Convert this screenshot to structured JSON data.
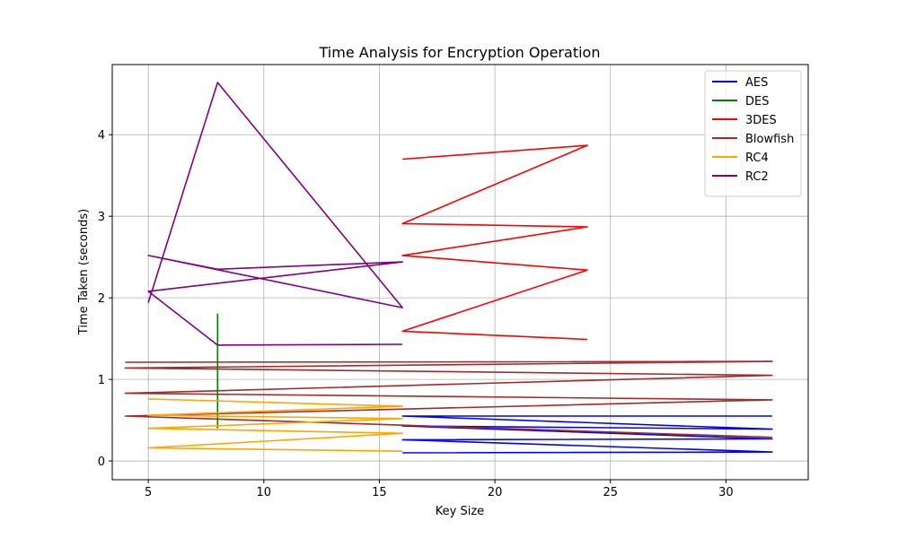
{
  "chart_data": {
    "type": "line",
    "title": "Time Analysis for Encryption Operation",
    "xlabel": "Key Size",
    "ylabel": "Time Taken (seconds)",
    "xlim": [
      3.44,
      33.56
    ],
    "ylim": [
      -0.23,
      4.86
    ],
    "xticks": [
      5,
      10,
      15,
      20,
      25,
      30
    ],
    "yticks": [
      0,
      1,
      2,
      3,
      4
    ],
    "grid": true,
    "legend_position": "top-right",
    "series": [
      {
        "name": "AES",
        "color": "#0000ff",
        "x": [
          16,
          32,
          16,
          32,
          16,
          32,
          16,
          32
        ],
        "y": [
          0.1,
          0.11,
          0.26,
          0.27,
          0.43,
          0.39,
          0.55,
          0.55
        ]
      },
      {
        "name": "DES",
        "color": "#008000",
        "x": [
          8,
          8,
          8,
          8
        ],
        "y": [
          0.4,
          1.42,
          1.8,
          0.55
        ]
      },
      {
        "name": "3DES",
        "color": "#ff0000",
        "x": [
          16,
          24,
          16,
          24,
          16,
          24,
          16,
          24
        ],
        "y": [
          3.7,
          3.87,
          2.91,
          2.87,
          2.52,
          2.34,
          1.59,
          1.49
        ]
      },
      {
        "name": "Blowfish",
        "color": "#a52a2a",
        "x": [
          4,
          32,
          4,
          32,
          4,
          32,
          4,
          32
        ],
        "y": [
          1.21,
          1.22,
          1.14,
          1.05,
          0.83,
          0.75,
          0.55,
          0.29
        ]
      },
      {
        "name": "RC4",
        "color": "#ffa500",
        "x": [
          5,
          16,
          5,
          16,
          5,
          16,
          5,
          16
        ],
        "y": [
          0.76,
          0.67,
          0.56,
          0.52,
          0.4,
          0.34,
          0.16,
          0.12
        ]
      },
      {
        "name": "RC2",
        "color": "#800080",
        "x": [
          5,
          8,
          16,
          5,
          8,
          16,
          5,
          8,
          16
        ],
        "y": [
          1.94,
          4.64,
          1.88,
          2.52,
          2.35,
          2.44,
          2.08,
          1.42,
          1.43
        ]
      }
    ]
  }
}
